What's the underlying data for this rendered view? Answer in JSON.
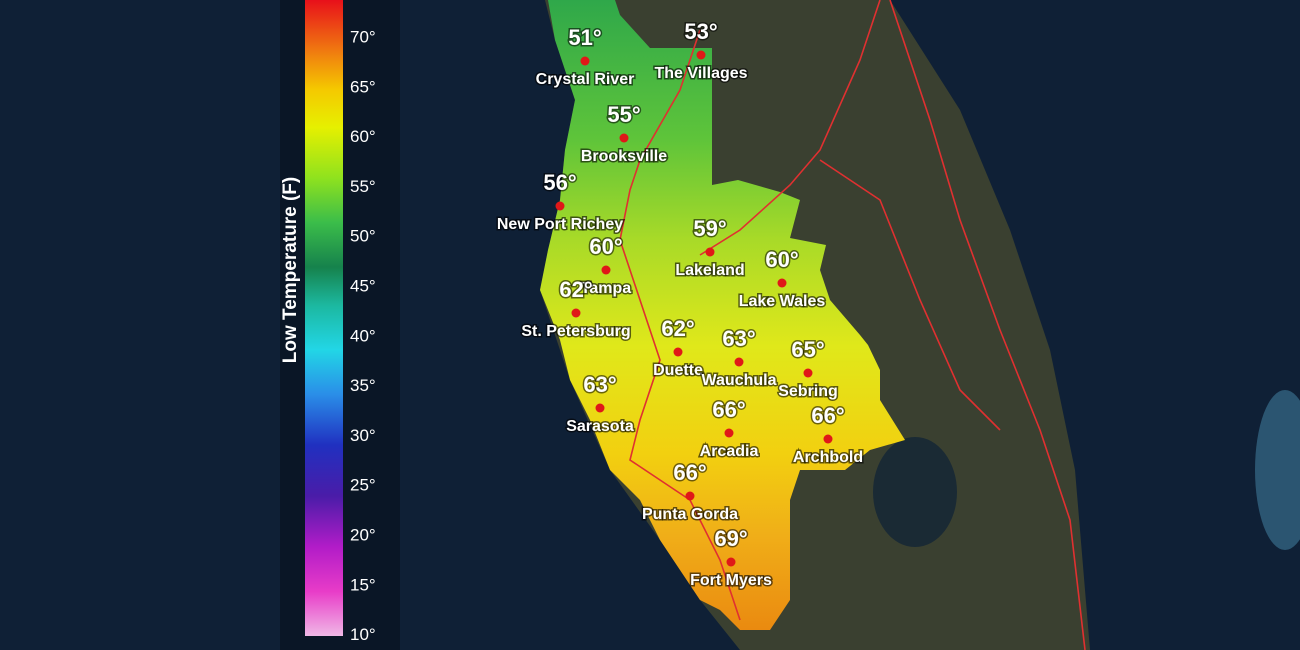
{
  "legend": {
    "title": "Low Temperature (F)",
    "ticks": [
      "70°",
      "65°",
      "60°",
      "55°",
      "50°",
      "45°",
      "40°",
      "35°",
      "30°",
      "25°",
      "20°",
      "15°",
      "10°"
    ]
  },
  "cities": [
    {
      "name": "Crystal River",
      "temp": "51°"
    },
    {
      "name": "The Villages",
      "temp": "53°"
    },
    {
      "name": "Brooksville",
      "temp": "55°"
    },
    {
      "name": "New Port Richey",
      "temp": "56°"
    },
    {
      "name": "Tampa",
      "temp": "60°"
    },
    {
      "name": "St. Petersburg",
      "temp": "62°"
    },
    {
      "name": "Lakeland",
      "temp": "59°"
    },
    {
      "name": "Lake Wales",
      "temp": "60°"
    },
    {
      "name": "Duette",
      "temp": "62°"
    },
    {
      "name": "Wauchula",
      "temp": "63°"
    },
    {
      "name": "Sebring",
      "temp": "65°"
    },
    {
      "name": "Sarasota",
      "temp": "63°"
    },
    {
      "name": "Arcadia",
      "temp": "66°"
    },
    {
      "name": "Archbold",
      "temp": "66°"
    },
    {
      "name": "Punta Gorda",
      "temp": "66°"
    },
    {
      "name": "Fort Myers",
      "temp": "69°"
    }
  ]
}
